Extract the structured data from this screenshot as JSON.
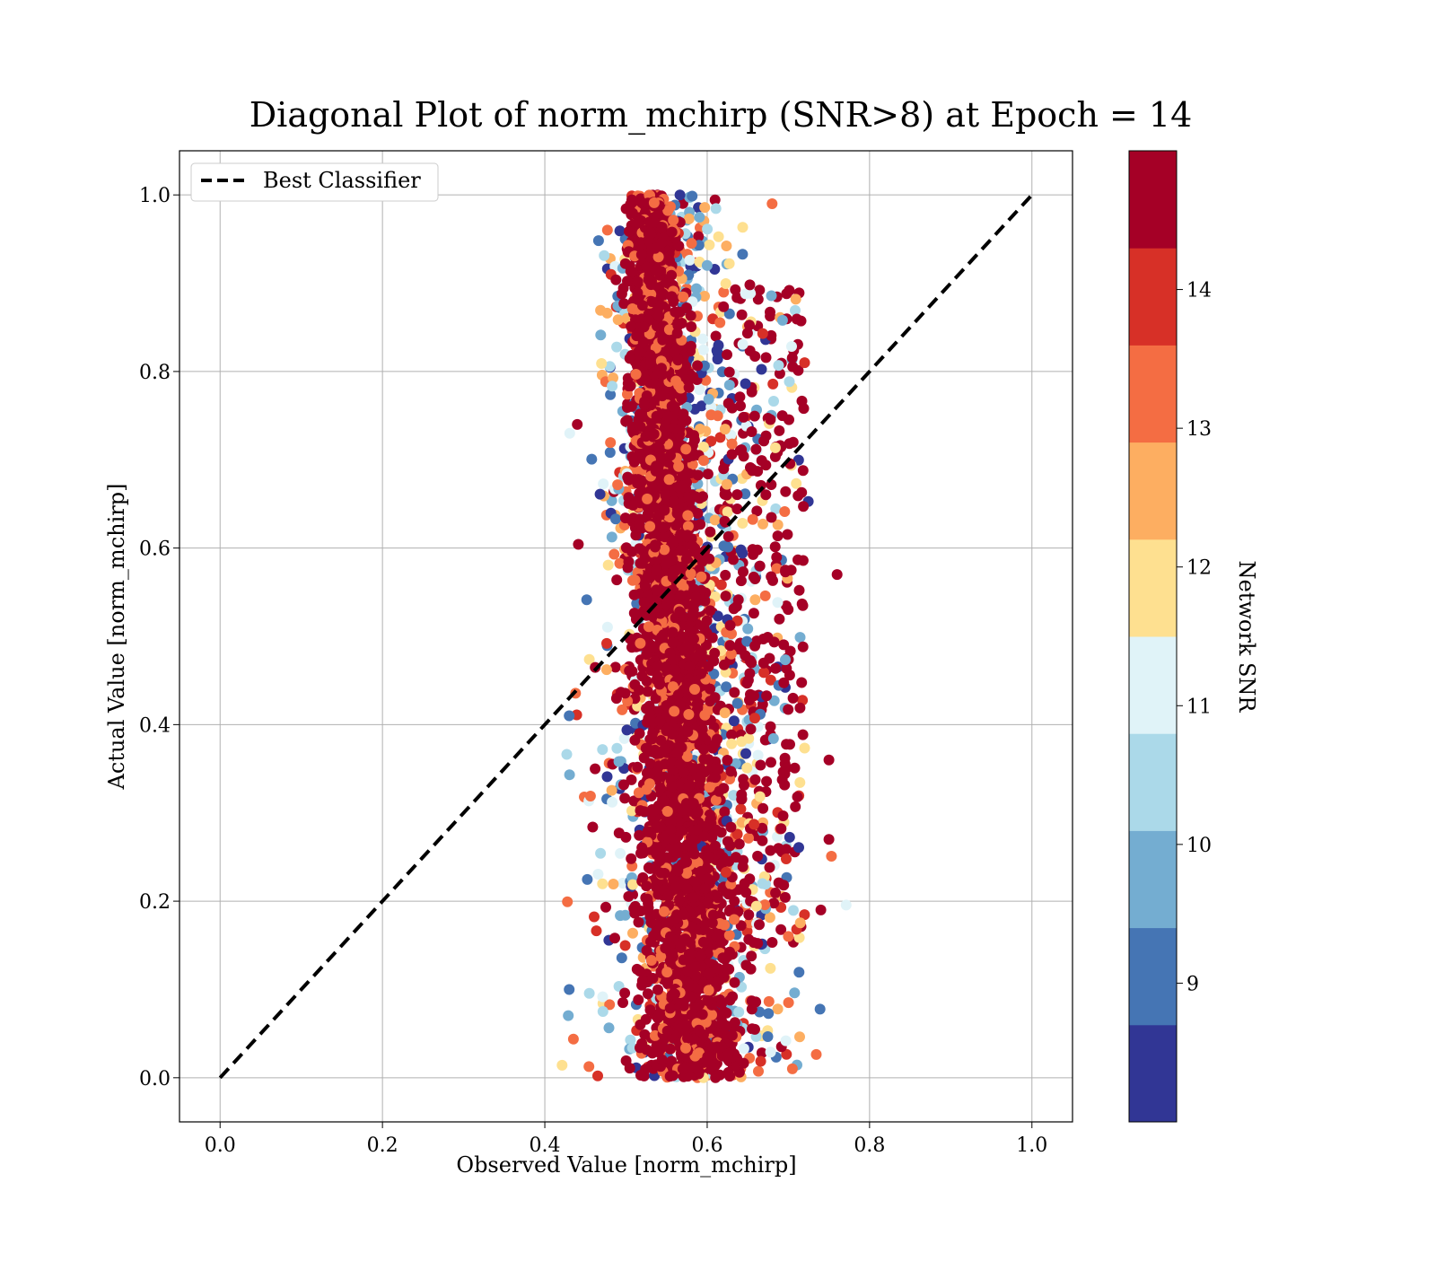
{
  "chart_data": {
    "type": "scatter",
    "title": "Diagonal Plot of norm_mchirp (SNR>8) at Epoch = 14",
    "xlabel": "Observed Value [norm_mchirp]",
    "ylabel": "Actual Value [norm_mchirp]",
    "xlim": [
      -0.05,
      1.05
    ],
    "ylim": [
      -0.05,
      1.05
    ],
    "x_ticks": [
      "0.0",
      "0.2",
      "0.4",
      "0.6",
      "0.8",
      "1.0"
    ],
    "y_ticks": [
      "0.0",
      "0.2",
      "0.4",
      "0.6",
      "0.8",
      "1.0"
    ],
    "grid": true,
    "legend_position": "top-left",
    "reference_line": {
      "name": "Best Classifier",
      "x": [
        0,
        1
      ],
      "y": [
        0,
        1
      ],
      "style": "dashed",
      "color": "#000000"
    },
    "colorbar": {
      "label": "Network SNR",
      "min": 8.0,
      "max": 15.0,
      "ticks": [
        "9",
        "10",
        "11",
        "12",
        "13",
        "14"
      ],
      "bins": [
        "#313695",
        "#4575b4",
        "#74add1",
        "#abd9e9",
        "#e0f3f8",
        "#fee090",
        "#fdae61",
        "#f46d43",
        "#d73027",
        "#a50026"
      ]
    },
    "points_summary": {
      "x_center_range": [
        0.46,
        0.72
      ],
      "y_range": [
        0.0,
        1.0
      ],
      "dominant_snr": 14.5,
      "note_values": [
        {
          "x": 0.43,
          "y": 0.41,
          "snr": 9.2
        },
        {
          "x": 0.44,
          "y": 0.74,
          "snr": 14.7
        },
        {
          "x": 0.43,
          "y": 0.1,
          "snr": 9.0
        },
        {
          "x": 0.76,
          "y": 0.57,
          "snr": 14.8
        },
        {
          "x": 0.75,
          "y": 0.36,
          "snr": 14.8
        },
        {
          "x": 0.75,
          "y": 0.27,
          "snr": 14.8
        },
        {
          "x": 0.74,
          "y": 0.19,
          "snr": 14.8
        },
        {
          "x": 0.7,
          "y": 0.16,
          "snr": 13.5
        },
        {
          "x": 0.72,
          "y": 0.81,
          "snr": 14.2
        },
        {
          "x": 0.68,
          "y": 0.99,
          "snr": 13.2
        },
        {
          "x": 0.57,
          "y": 0.01,
          "snr": 14.8
        }
      ]
    }
  }
}
